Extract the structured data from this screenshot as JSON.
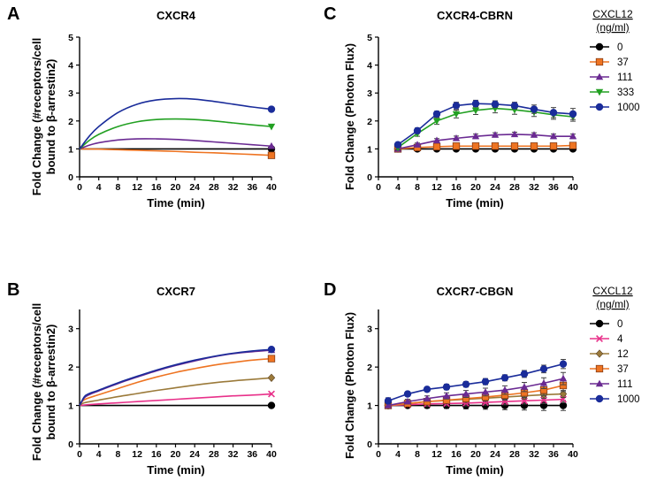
{
  "colors": {
    "c0": "#000000",
    "c4": "#e8318a",
    "c12": "#9b7a3a",
    "c37": "#ee7422",
    "c111": "#6a2a92",
    "c333": "#22a022",
    "c1000": "#1a2c9a"
  },
  "legend_top": {
    "title_line1": "CXCL12",
    "title_line2": "(ng/ml)",
    "entries": [
      {
        "label": "0",
        "key": "c0",
        "marker": "circle"
      },
      {
        "label": "37",
        "key": "c37",
        "marker": "square"
      },
      {
        "label": "111",
        "key": "c111",
        "marker": "triangle"
      },
      {
        "label": "333",
        "key": "c333",
        "marker": "triangle-down"
      },
      {
        "label": "1000",
        "key": "c1000",
        "marker": "circle"
      }
    ]
  },
  "legend_bottom": {
    "title_line1": "CXCL12",
    "title_line2": "(ng/ml)",
    "entries": [
      {
        "label": "0",
        "key": "c0",
        "marker": "circle"
      },
      {
        "label": "4",
        "key": "c4",
        "marker": "x"
      },
      {
        "label": "12",
        "key": "c12",
        "marker": "diamond"
      },
      {
        "label": "37",
        "key": "c37",
        "marker": "square"
      },
      {
        "label": "111",
        "key": "c111",
        "marker": "triangle"
      },
      {
        "label": "1000",
        "key": "c1000",
        "marker": "circle"
      }
    ]
  },
  "chart_data": [
    {
      "id": "A",
      "letter": "A",
      "type": "line",
      "title": "CXCR4",
      "xlabel": "Time (min)",
      "ylabel_line1": "Fold  Change (#receptors/cell",
      "ylabel_line2": "bound to β-arrestin2)",
      "xlim": [
        0,
        40
      ],
      "ylim": [
        0,
        5
      ],
      "xticks": [
        0,
        4,
        8,
        12,
        16,
        20,
        24,
        28,
        32,
        36,
        40
      ],
      "yticks": [
        0,
        1,
        2,
        3,
        4,
        5
      ],
      "yticklabels": [
        "0",
        "1",
        "2",
        "3",
        "4",
        "5"
      ],
      "errorbars": false,
      "series": [
        {
          "key": "c0",
          "marker": "circle",
          "x": [
            0,
            40
          ],
          "y": [
            1.0,
            1.0
          ]
        },
        {
          "key": "c37",
          "marker": "square",
          "x": [
            0,
            4,
            8,
            12,
            16,
            20,
            24,
            28,
            32,
            36,
            40
          ],
          "y": [
            1.0,
            0.99,
            0.97,
            0.95,
            0.93,
            0.91,
            0.88,
            0.86,
            0.83,
            0.8,
            0.77
          ]
        },
        {
          "key": "c111",
          "marker": "triangle",
          "x": [
            0,
            2,
            4,
            8,
            12,
            16,
            20,
            24,
            28,
            32,
            36,
            40
          ],
          "y": [
            1.0,
            1.13,
            1.22,
            1.32,
            1.36,
            1.36,
            1.34,
            1.3,
            1.25,
            1.2,
            1.15,
            1.1
          ]
        },
        {
          "key": "c333",
          "marker": "triangle-down",
          "x": [
            0,
            2,
            4,
            8,
            12,
            16,
            20,
            24,
            28,
            32,
            36,
            40
          ],
          "y": [
            1.0,
            1.3,
            1.52,
            1.8,
            1.97,
            2.05,
            2.07,
            2.05,
            2.0,
            1.93,
            1.86,
            1.8
          ]
        },
        {
          "key": "c1000",
          "marker": "circle",
          "x": [
            0,
            2,
            4,
            8,
            12,
            16,
            20,
            24,
            28,
            32,
            36,
            40
          ],
          "y": [
            1.0,
            1.45,
            1.8,
            2.3,
            2.6,
            2.75,
            2.8,
            2.78,
            2.7,
            2.6,
            2.5,
            2.42
          ]
        }
      ]
    },
    {
      "id": "C",
      "letter": "C",
      "type": "line",
      "title": "CXCR4-CBRN",
      "xlabel": "Time (min)",
      "ylabel_line1": "Fold  Change (Photon  Flux)",
      "ylabel_line2": "",
      "xlim": [
        0,
        40
      ],
      "ylim": [
        0,
        5
      ],
      "xticks": [
        0,
        4,
        8,
        12,
        16,
        20,
        24,
        28,
        32,
        36,
        40
      ],
      "yticks": [
        0,
        1,
        2,
        3,
        4,
        5
      ],
      "yticklabels": [
        "0",
        "1",
        "2",
        "3",
        "4",
        "5"
      ],
      "errorbars": true,
      "series": [
        {
          "key": "c0",
          "marker": "circle",
          "x": [
            4,
            8,
            12,
            16,
            20,
            24,
            28,
            32,
            36,
            40
          ],
          "y": [
            1.0,
            1.0,
            1.0,
            1.0,
            1.0,
            1.0,
            1.0,
            1.0,
            1.0,
            1.0
          ],
          "err": [
            0.05,
            0.05,
            0.05,
            0.05,
            0.05,
            0.05,
            0.05,
            0.05,
            0.05,
            0.05
          ]
        },
        {
          "key": "c37",
          "marker": "square",
          "x": [
            4,
            8,
            12,
            16,
            20,
            24,
            28,
            32,
            36,
            40
          ],
          "y": [
            1.0,
            1.05,
            1.08,
            1.1,
            1.1,
            1.1,
            1.1,
            1.1,
            1.1,
            1.12
          ],
          "err": [
            0.05,
            0.06,
            0.06,
            0.06,
            0.07,
            0.07,
            0.07,
            0.07,
            0.07,
            0.07
          ]
        },
        {
          "key": "c111",
          "marker": "triangle",
          "x": [
            4,
            8,
            12,
            16,
            20,
            24,
            28,
            32,
            36,
            40
          ],
          "y": [
            1.0,
            1.15,
            1.3,
            1.38,
            1.45,
            1.5,
            1.52,
            1.5,
            1.45,
            1.45
          ],
          "err": [
            0.05,
            0.06,
            0.07,
            0.08,
            0.08,
            0.08,
            0.08,
            0.08,
            0.08,
            0.08
          ]
        },
        {
          "key": "c333",
          "marker": "triangle-down",
          "x": [
            4,
            8,
            12,
            16,
            20,
            24,
            28,
            32,
            36,
            40
          ],
          "y": [
            1.05,
            1.55,
            2.0,
            2.25,
            2.38,
            2.45,
            2.4,
            2.32,
            2.22,
            2.15
          ],
          "err": [
            0.08,
            0.1,
            0.12,
            0.14,
            0.15,
            0.16,
            0.16,
            0.16,
            0.16,
            0.16
          ]
        },
        {
          "key": "c1000",
          "marker": "circle",
          "x": [
            4,
            8,
            12,
            16,
            20,
            24,
            28,
            32,
            36,
            40
          ],
          "y": [
            1.15,
            1.65,
            2.25,
            2.55,
            2.62,
            2.6,
            2.55,
            2.42,
            2.3,
            2.25
          ],
          "err": [
            0.08,
            0.1,
            0.1,
            0.12,
            0.12,
            0.12,
            0.12,
            0.15,
            0.18,
            0.2
          ]
        }
      ]
    },
    {
      "id": "B",
      "letter": "B",
      "type": "line",
      "title": "CXCR7",
      "xlabel": "Time (min)",
      "ylabel_line1": "Fold  Change (#receptors/cell",
      "ylabel_line2": "bound to β-arrestin2)",
      "xlim": [
        0,
        40
      ],
      "ylim": [
        0,
        3.5
      ],
      "xticks": [
        0,
        4,
        8,
        12,
        16,
        20,
        24,
        28,
        32,
        36,
        40
      ],
      "yticks": [
        0,
        1,
        2,
        3
      ],
      "yticklabels": [
        "0",
        "1",
        "2",
        "3"
      ],
      "errorbars": false,
      "series": [
        {
          "key": "c0",
          "marker": "circle",
          "x": [
            0,
            40
          ],
          "y": [
            1.0,
            1.0
          ]
        },
        {
          "key": "c4",
          "marker": "x",
          "x": [
            0,
            4,
            8,
            12,
            16,
            20,
            24,
            28,
            32,
            36,
            40
          ],
          "y": [
            1.0,
            1.04,
            1.07,
            1.1,
            1.13,
            1.16,
            1.19,
            1.22,
            1.25,
            1.27,
            1.3
          ]
        },
        {
          "key": "c12",
          "marker": "diamond",
          "x": [
            0,
            1,
            4,
            8,
            12,
            16,
            20,
            24,
            28,
            32,
            36,
            40
          ],
          "y": [
            1.0,
            1.07,
            1.14,
            1.23,
            1.31,
            1.39,
            1.46,
            1.53,
            1.59,
            1.64,
            1.68,
            1.72
          ]
        },
        {
          "key": "c37",
          "marker": "square",
          "x": [
            0,
            1,
            4,
            8,
            12,
            16,
            20,
            24,
            28,
            32,
            36,
            40
          ],
          "y": [
            1.0,
            1.15,
            1.28,
            1.44,
            1.6,
            1.74,
            1.86,
            1.96,
            2.05,
            2.12,
            2.18,
            2.22
          ]
        },
        {
          "key": "c111",
          "marker": "triangle",
          "x": [
            0,
            1,
            2,
            4,
            8,
            12,
            16,
            20,
            24,
            28,
            32,
            36,
            40
          ],
          "y": [
            1.0,
            1.2,
            1.28,
            1.38,
            1.57,
            1.74,
            1.9,
            2.04,
            2.16,
            2.27,
            2.35,
            2.4,
            2.44
          ]
        },
        {
          "key": "c1000",
          "marker": "circle",
          "x": [
            0,
            1,
            2,
            4,
            8,
            12,
            16,
            20,
            24,
            28,
            32,
            36,
            40
          ],
          "y": [
            1.0,
            1.23,
            1.31,
            1.4,
            1.59,
            1.76,
            1.92,
            2.06,
            2.18,
            2.28,
            2.36,
            2.42,
            2.46
          ]
        }
      ]
    },
    {
      "id": "D",
      "letter": "D",
      "type": "line",
      "title": "CXCR7-CBGN",
      "xlabel": "Time (min)",
      "ylabel_line1": "Fold  Change (Photon  Flux)",
      "ylabel_line2": "",
      "xlim": [
        0,
        40
      ],
      "ylim": [
        0,
        3.5
      ],
      "xticks": [
        0,
        4,
        8,
        12,
        16,
        20,
        24,
        28,
        32,
        36,
        40
      ],
      "yticks": [
        0,
        1,
        2,
        3
      ],
      "yticklabels": [
        "0",
        "1",
        "2",
        "3"
      ],
      "errorbars": true,
      "series": [
        {
          "key": "c0",
          "marker": "circle",
          "x": [
            2,
            6,
            10,
            14,
            18,
            22,
            26,
            30,
            34,
            38
          ],
          "y": [
            1.0,
            1.0,
            1.0,
            1.0,
            1.0,
            1.0,
            1.0,
            1.0,
            1.0,
            1.0
          ],
          "err": [
            0.06,
            0.06,
            0.07,
            0.08,
            0.09,
            0.1,
            0.11,
            0.12,
            0.13,
            0.13
          ]
        },
        {
          "key": "c4",
          "marker": "x",
          "x": [
            2,
            6,
            10,
            14,
            18,
            22,
            26,
            30,
            34,
            38
          ],
          "y": [
            1.0,
            1.02,
            1.04,
            1.05,
            1.06,
            1.08,
            1.1,
            1.12,
            1.14,
            1.16
          ],
          "err": [
            0.05,
            0.05,
            0.06,
            0.06,
            0.07,
            0.07,
            0.08,
            0.08,
            0.09,
            0.09
          ]
        },
        {
          "key": "c12",
          "marker": "diamond",
          "x": [
            2,
            6,
            10,
            14,
            18,
            22,
            26,
            30,
            34,
            38
          ],
          "y": [
            1.0,
            1.05,
            1.1,
            1.13,
            1.16,
            1.19,
            1.22,
            1.25,
            1.28,
            1.3
          ],
          "err": [
            0.05,
            0.05,
            0.06,
            0.06,
            0.07,
            0.07,
            0.08,
            0.08,
            0.09,
            0.09
          ]
        },
        {
          "key": "c37",
          "marker": "square",
          "x": [
            2,
            6,
            10,
            14,
            18,
            22,
            26,
            30,
            34,
            38
          ],
          "y": [
            1.0,
            1.05,
            1.1,
            1.14,
            1.18,
            1.22,
            1.27,
            1.33,
            1.4,
            1.52
          ],
          "err": [
            0.06,
            0.06,
            0.07,
            0.08,
            0.09,
            0.1,
            0.11,
            0.12,
            0.14,
            0.16
          ]
        },
        {
          "key": "c111",
          "marker": "triangle",
          "x": [
            2,
            6,
            10,
            14,
            18,
            22,
            26,
            30,
            34,
            38
          ],
          "y": [
            1.0,
            1.1,
            1.18,
            1.25,
            1.3,
            1.35,
            1.4,
            1.48,
            1.58,
            1.7
          ],
          "err": [
            0.06,
            0.06,
            0.07,
            0.08,
            0.09,
            0.1,
            0.11,
            0.12,
            0.14,
            0.16
          ]
        },
        {
          "key": "c1000",
          "marker": "circle",
          "x": [
            2,
            6,
            10,
            14,
            18,
            22,
            26,
            30,
            34,
            38
          ],
          "y": [
            1.12,
            1.3,
            1.42,
            1.48,
            1.55,
            1.62,
            1.72,
            1.82,
            1.95,
            2.08
          ],
          "err": [
            0.08,
            0.06,
            0.06,
            0.07,
            0.07,
            0.08,
            0.08,
            0.09,
            0.1,
            0.12
          ]
        }
      ]
    }
  ]
}
